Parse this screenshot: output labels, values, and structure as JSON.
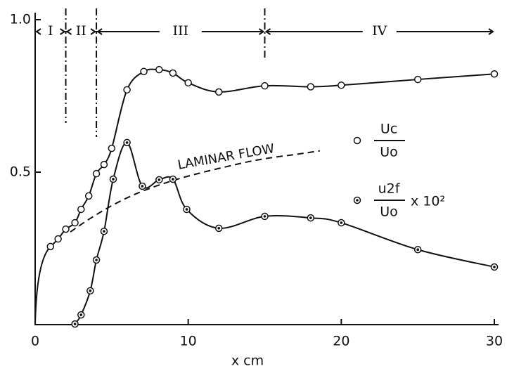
{
  "chart_data": {
    "type": "line",
    "x_label": "x   cm",
    "xlim": [
      0,
      30
    ],
    "ylim": [
      0,
      1
    ],
    "xticks": [
      0,
      10,
      20,
      30
    ],
    "yticks": [
      0.5,
      {
        "value": 1,
        "label": "1.0"
      }
    ],
    "regions": [
      {
        "label": "I",
        "from": 0,
        "to": 2
      },
      {
        "label": "II",
        "from": 2,
        "to": 4
      },
      {
        "label": "III",
        "from": 4,
        "to": 15
      },
      {
        "label": "IV",
        "from": 15,
        "to": 30
      }
    ],
    "annotation": {
      "text": "LAMINAR FLOW",
      "x": [
        2.3,
        3.5,
        5,
        6.5,
        8,
        9.5,
        11,
        12.5,
        14,
        15.5,
        17,
        18.6
      ],
      "values": [
        0.304,
        0.345,
        0.39,
        0.427,
        0.456,
        0.48,
        0.5,
        0.518,
        0.535,
        0.548,
        0.558,
        0.57
      ]
    },
    "series": [
      {
        "name_numerator": "Uc",
        "name_denominator": "Uo",
        "marker": "open",
        "color": "#111",
        "x": [
          1.0,
          1.5,
          2.0,
          2.6,
          3.0,
          3.5,
          4.0,
          4.5,
          5.0,
          6.0,
          7.1,
          8.1,
          9.0,
          10.0,
          12.0,
          15.0,
          18.0,
          20.0,
          25.0,
          30.0
        ],
        "values": [
          0.256,
          0.281,
          0.313,
          0.334,
          0.378,
          0.422,
          0.495,
          0.525,
          0.578,
          0.77,
          0.83,
          0.836,
          0.825,
          0.793,
          0.763,
          0.783,
          0.78,
          0.785,
          0.804,
          0.822
        ]
      },
      {
        "name_numerator": "u2f",
        "name_denominator": "Uo",
        "name_suffix": "x 10²",
        "marker": "dot",
        "color": "#111",
        "x": [
          2.6,
          3.0,
          3.6,
          4.0,
          4.5,
          5.1,
          6.0,
          7.0,
          8.1,
          9.0,
          9.9,
          12.0,
          15.0,
          18.0,
          20.0,
          25.0,
          30.0
        ],
        "values": [
          0.002,
          0.032,
          0.111,
          0.212,
          0.306,
          0.477,
          0.597,
          0.454,
          0.475,
          0.477,
          0.378,
          0.316,
          0.355,
          0.35,
          0.334,
          0.246,
          0.189
        ]
      }
    ]
  }
}
